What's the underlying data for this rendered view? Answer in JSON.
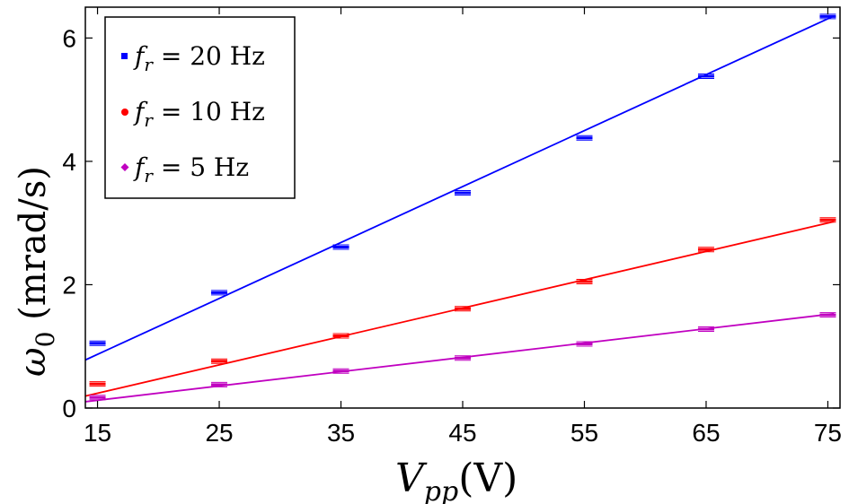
{
  "chart_data": {
    "type": "scatter",
    "xlabel": "V_pp(V)",
    "ylabel": "ω_0 (mrad/s)",
    "xlim": [
      14,
      76
    ],
    "ylim": [
      0,
      6.5
    ],
    "xticks": [
      15,
      25,
      35,
      45,
      55,
      65,
      75
    ],
    "yticks": [
      0,
      2,
      4,
      6
    ],
    "grid": false,
    "legend_position": "top-left",
    "x": [
      15,
      25,
      35,
      45,
      55,
      65,
      75
    ],
    "series": [
      {
        "name": "f_r = 20 Hz",
        "color": "#0000ff",
        "marker": "square",
        "values": [
          1.05,
          1.87,
          2.61,
          3.49,
          4.38,
          5.38,
          6.35
        ],
        "fit": {
          "slope": 0.0907,
          "intercept": -0.49
        }
      },
      {
        "name": "f_r = 10 Hz",
        "color": "#ff0000",
        "marker": "circle",
        "values": [
          0.39,
          0.76,
          1.17,
          1.61,
          2.05,
          2.57,
          3.05
        ],
        "fit": {
          "slope": 0.046,
          "intercept": -0.45
        }
      },
      {
        "name": "f_r = 5 Hz",
        "color": "#c000c0",
        "marker": "diamond",
        "values": [
          0.17,
          0.38,
          0.6,
          0.81,
          1.04,
          1.28,
          1.51
        ],
        "fit": {
          "slope": 0.0232,
          "intercept": -0.222
        }
      }
    ]
  },
  "legend": {
    "items": [
      {
        "sym": "f",
        "sub": "r",
        "rest": " = 20 Hz",
        "color": "#0000ff"
      },
      {
        "sym": "f",
        "sub": "r",
        "rest": " = 10 Hz",
        "color": "#ff0000"
      },
      {
        "sym": "f",
        "sub": "r",
        "rest": " = 5 Hz",
        "color": "#c000c0"
      }
    ]
  },
  "axis_labels": {
    "x_main": "V",
    "x_sub": "pp",
    "x_rest": "(V)",
    "y_main": "ω",
    "y_sub": "0",
    "y_rest": " (mrad/s)"
  }
}
